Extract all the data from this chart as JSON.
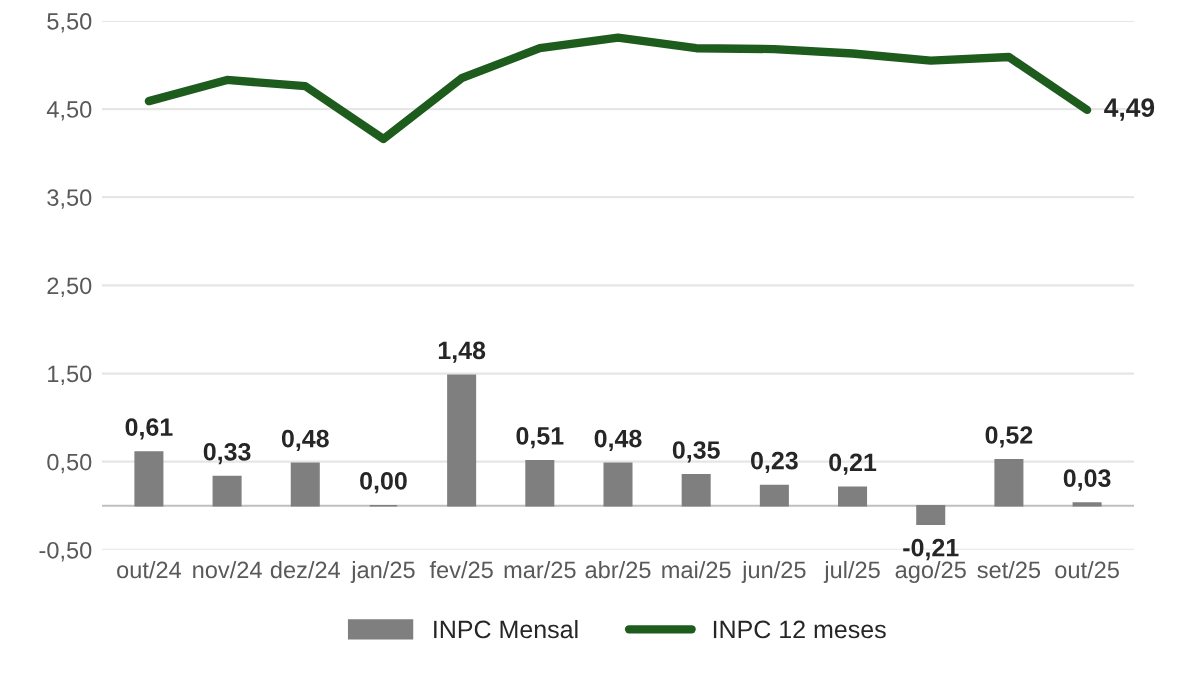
{
  "chart_data": {
    "type": "bar",
    "categories": [
      "out/24",
      "nov/24",
      "dez/24",
      "jan/25",
      "fev/25",
      "mar/25",
      "abr/25",
      "mai/25",
      "jun/25",
      "jul/25",
      "ago/25",
      "set/25",
      "out/25"
    ],
    "series": [
      {
        "name": "INPC Mensal",
        "color": "#7f7f7f",
        "values": [
          0.61,
          0.33,
          0.48,
          0.0,
          1.48,
          0.51,
          0.48,
          0.35,
          0.23,
          0.21,
          -0.21,
          0.52,
          0.03
        ],
        "value_labels": [
          "0,61",
          "0,33",
          "0,48",
          "0,00",
          "1,48",
          "0,51",
          "0,48",
          "0,35",
          "0,23",
          "0,21",
          "-0,21",
          "0,52",
          "0,03"
        ]
      },
      {
        "name": "INPC 12 meses",
        "type": "line",
        "color": "#1e5c1e",
        "values": [
          4.59,
          4.83,
          4.76,
          4.16,
          4.85,
          5.19,
          5.31,
          5.19,
          5.18,
          5.13,
          5.05,
          5.09,
          4.49
        ],
        "value_labels": [
          null,
          null,
          null,
          null,
          null,
          null,
          null,
          null,
          null,
          null,
          null,
          null,
          "4,49"
        ]
      }
    ],
    "ylim": [
      -0.5,
      5.5
    ],
    "yticks": [
      {
        "value": -0.5,
        "label": "-0,50"
      },
      {
        "value": 0.5,
        "label": "0,50"
      },
      {
        "value": 1.5,
        "label": "1,50"
      },
      {
        "value": 2.5,
        "label": "2,50"
      },
      {
        "value": 3.5,
        "label": "3,50"
      },
      {
        "value": 4.5,
        "label": "4,50"
      },
      {
        "value": 5.5,
        "label": "5,50"
      }
    ],
    "grid": "y",
    "legend": "bottom",
    "marker": "none",
    "line_style": "solid"
  }
}
